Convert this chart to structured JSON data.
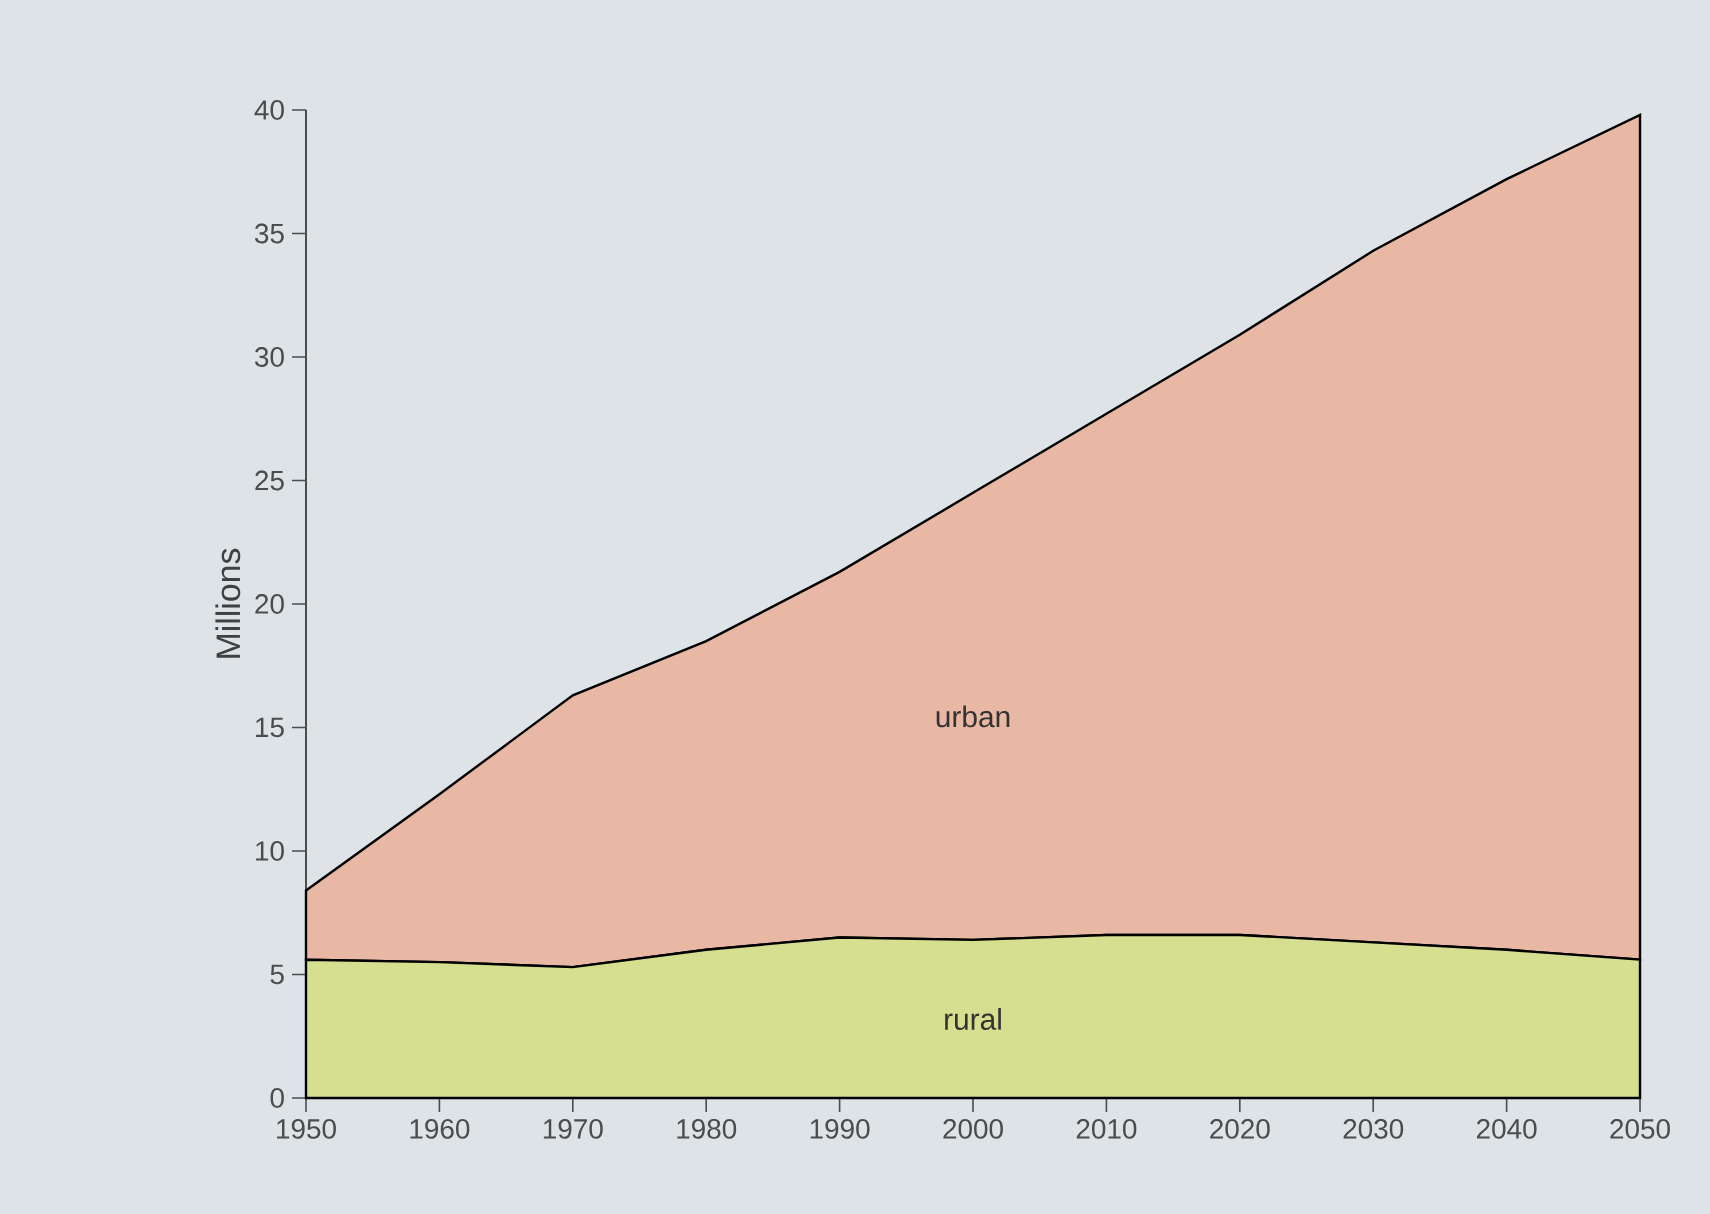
{
  "chart_data": {
    "type": "area",
    "stacked": true,
    "ylabel": "Millions",
    "x": [
      1950,
      1960,
      1970,
      1980,
      1990,
      2000,
      2010,
      2020,
      2030,
      2040,
      2050
    ],
    "series": [
      {
        "name": "rural",
        "color": "#d6df90",
        "values": [
          5.6,
          5.5,
          5.3,
          6.0,
          6.5,
          6.4,
          6.6,
          6.6,
          6.3,
          6.0,
          5.6
        ]
      },
      {
        "name": "urban",
        "color": "#e8b8a4",
        "values": [
          2.8,
          6.8,
          11.0,
          12.5,
          14.8,
          18.1,
          21.1,
          24.3,
          28.0,
          31.2,
          34.2
        ]
      }
    ],
    "xlim": [
      1950,
      2050
    ],
    "ylim": [
      0,
      40
    ],
    "xticks": [
      1950,
      1960,
      1970,
      1980,
      1990,
      2000,
      2010,
      2020,
      2030,
      2040,
      2050
    ],
    "yticks": [
      0,
      5,
      10,
      15,
      20,
      25,
      30,
      35,
      40
    ],
    "grid": false
  }
}
